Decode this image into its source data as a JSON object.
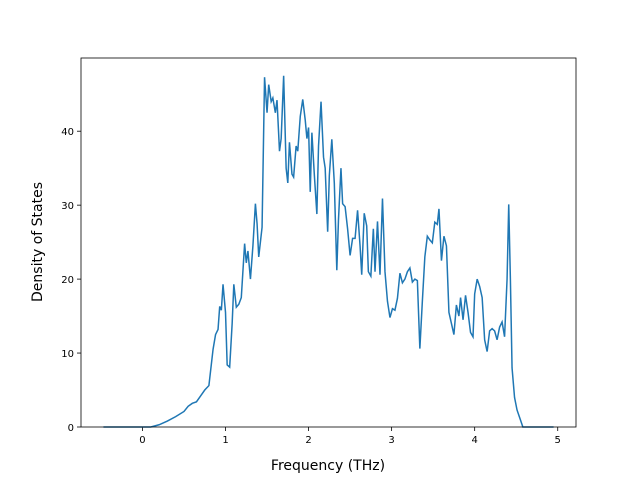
{
  "chart_data": {
    "type": "line",
    "xlabel": "Frequency (THz)",
    "ylabel": "Density of States",
    "xlim": [
      -0.74,
      5.22
    ],
    "ylim": [
      0,
      49.9
    ],
    "xticks": [
      0,
      1,
      2,
      3,
      4,
      5
    ],
    "yticks": [
      0,
      10,
      20,
      30,
      40
    ],
    "x": [
      -0.47,
      0.1,
      0.2,
      0.3,
      0.4,
      0.5,
      0.55,
      0.6,
      0.65,
      0.7,
      0.75,
      0.8,
      0.85,
      0.88,
      0.91,
      0.93,
      0.95,
      0.97,
      1.0,
      1.02,
      1.05,
      1.08,
      1.1,
      1.13,
      1.16,
      1.19,
      1.23,
      1.25,
      1.27,
      1.3,
      1.33,
      1.36,
      1.38,
      1.4,
      1.44,
      1.47,
      1.5,
      1.52,
      1.55,
      1.57,
      1.6,
      1.62,
      1.65,
      1.67,
      1.7,
      1.73,
      1.75,
      1.77,
      1.8,
      1.82,
      1.85,
      1.87,
      1.9,
      1.93,
      1.96,
      1.98,
      2.0,
      2.02,
      2.04,
      2.07,
      2.1,
      2.12,
      2.15,
      2.18,
      2.2,
      2.23,
      2.25,
      2.28,
      2.31,
      2.34,
      2.36,
      2.39,
      2.41,
      2.44,
      2.47,
      2.5,
      2.53,
      2.56,
      2.59,
      2.62,
      2.64,
      2.67,
      2.7,
      2.72,
      2.75,
      2.78,
      2.8,
      2.83,
      2.86,
      2.89,
      2.92,
      2.95,
      2.98,
      3.01,
      3.04,
      3.07,
      3.1,
      3.13,
      3.16,
      3.19,
      3.22,
      3.25,
      3.28,
      3.31,
      3.34,
      3.37,
      3.4,
      3.43,
      3.46,
      3.49,
      3.52,
      3.55,
      3.57,
      3.6,
      3.63,
      3.66,
      3.69,
      3.72,
      3.75,
      3.78,
      3.81,
      3.83,
      3.86,
      3.89,
      3.92,
      3.95,
      3.98,
      4.0,
      4.03,
      4.06,
      4.09,
      4.12,
      4.15,
      4.18,
      4.21,
      4.24,
      4.27,
      4.3,
      4.33,
      4.36,
      4.39,
      4.41,
      4.43,
      4.45,
      4.48,
      4.51,
      4.55,
      4.58,
      4.95
    ],
    "series": [
      {
        "color": "#1f77b4",
        "values": [
          0,
          0,
          0.3,
          0.8,
          1.4,
          2.1,
          2.8,
          3.2,
          3.4,
          4.2,
          5.0,
          5.6,
          10.5,
          12.5,
          13.2,
          16.3,
          15.8,
          19.3,
          15.5,
          8.4,
          8.1,
          14,
          19.3,
          16.2,
          16.6,
          17.5,
          24.8,
          22.2,
          23.8,
          20,
          24.5,
          30.2,
          27.5,
          23,
          27,
          47.3,
          42.5,
          46.3,
          44,
          44.5,
          42.5,
          44.2,
          37.3,
          39,
          47.5,
          35,
          33,
          38.5,
          34.2,
          33.8,
          38,
          37.3,
          42,
          44.3,
          41.5,
          39,
          40.5,
          31.8,
          39.8,
          34,
          28.8,
          38,
          44,
          36.5,
          35,
          26.4,
          34,
          38.9,
          33,
          21.2,
          28,
          35,
          30.2,
          29.8,
          26.8,
          23.2,
          25.5,
          25.5,
          29.3,
          24.5,
          20.6,
          28.9,
          27.2,
          21,
          20.4,
          26.8,
          21,
          27.8,
          20.6,
          30.9,
          21,
          17,
          14.8,
          16,
          15.8,
          17.4,
          20.8,
          19.5,
          20,
          21,
          21.5,
          19.6,
          20,
          19.8,
          10.6,
          17,
          23,
          25.8,
          25.3,
          24.9,
          27.7,
          27.4,
          29.5,
          22.5,
          25.8,
          24.5,
          15.5,
          14,
          12.5,
          16.5,
          15,
          17.5,
          14.5,
          17.8,
          15.5,
          12.8,
          12.2,
          18,
          20,
          19,
          17.5,
          11.8,
          10.2,
          13,
          13.3,
          13,
          11.8,
          13.5,
          14.2,
          12.2,
          20,
          30.1,
          20,
          8,
          4,
          2.3,
          1,
          0,
          0
        ]
      }
    ]
  }
}
